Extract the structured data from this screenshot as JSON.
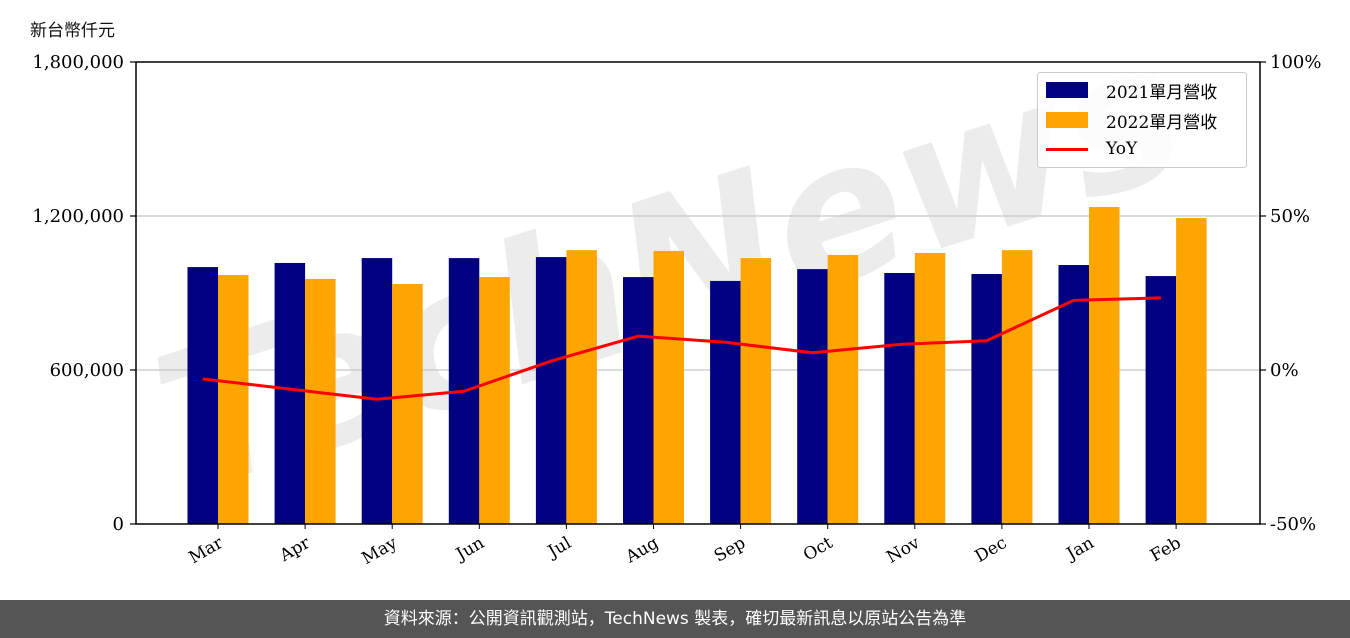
{
  "unit_label": "新台幣仟元",
  "footer": "資料來源：公開資訊觀測站，TechNews 製表，確切最新訊息以原站公告為準",
  "watermark": "TechNews",
  "chart_data": {
    "type": "bar",
    "categories": [
      "Mar",
      "Apr",
      "May",
      "Jun",
      "Jul",
      "Aug",
      "Sep",
      "Oct",
      "Nov",
      "Dec",
      "Jan",
      "Feb"
    ],
    "series": [
      {
        "name": "2021單月營收",
        "color": "#000080",
        "values": [
          1001000,
          1017000,
          1036000,
          1036000,
          1040000,
          962000,
          947000,
          993000,
          978000,
          974000,
          1009000,
          966000
        ]
      },
      {
        "name": "2022單月營收",
        "color": "#ffa500",
        "values": [
          970000,
          955000,
          935000,
          962000,
          1067000,
          1064000,
          1036000,
          1048000,
          1056000,
          1067000,
          1235000,
          1192000
        ]
      }
    ],
    "line_series": {
      "name": "YoY",
      "color": "#ff0000",
      "axis": "right",
      "values": [
        -2.9,
        -6.2,
        -9.5,
        -6.9,
        2.9,
        11.0,
        9.0,
        5.6,
        8.3,
        9.5,
        22.6,
        23.4
      ]
    },
    "ylim": [
      0,
      1800000
    ],
    "yticks": [
      "0",
      "600,000",
      "1,200,000",
      "1,800,000"
    ],
    "y2lim": [
      -50,
      100
    ],
    "y2ticks": [
      "-50%",
      "0%",
      "50%",
      "100%"
    ],
    "grid": "horizontal",
    "legend": "top-right"
  }
}
